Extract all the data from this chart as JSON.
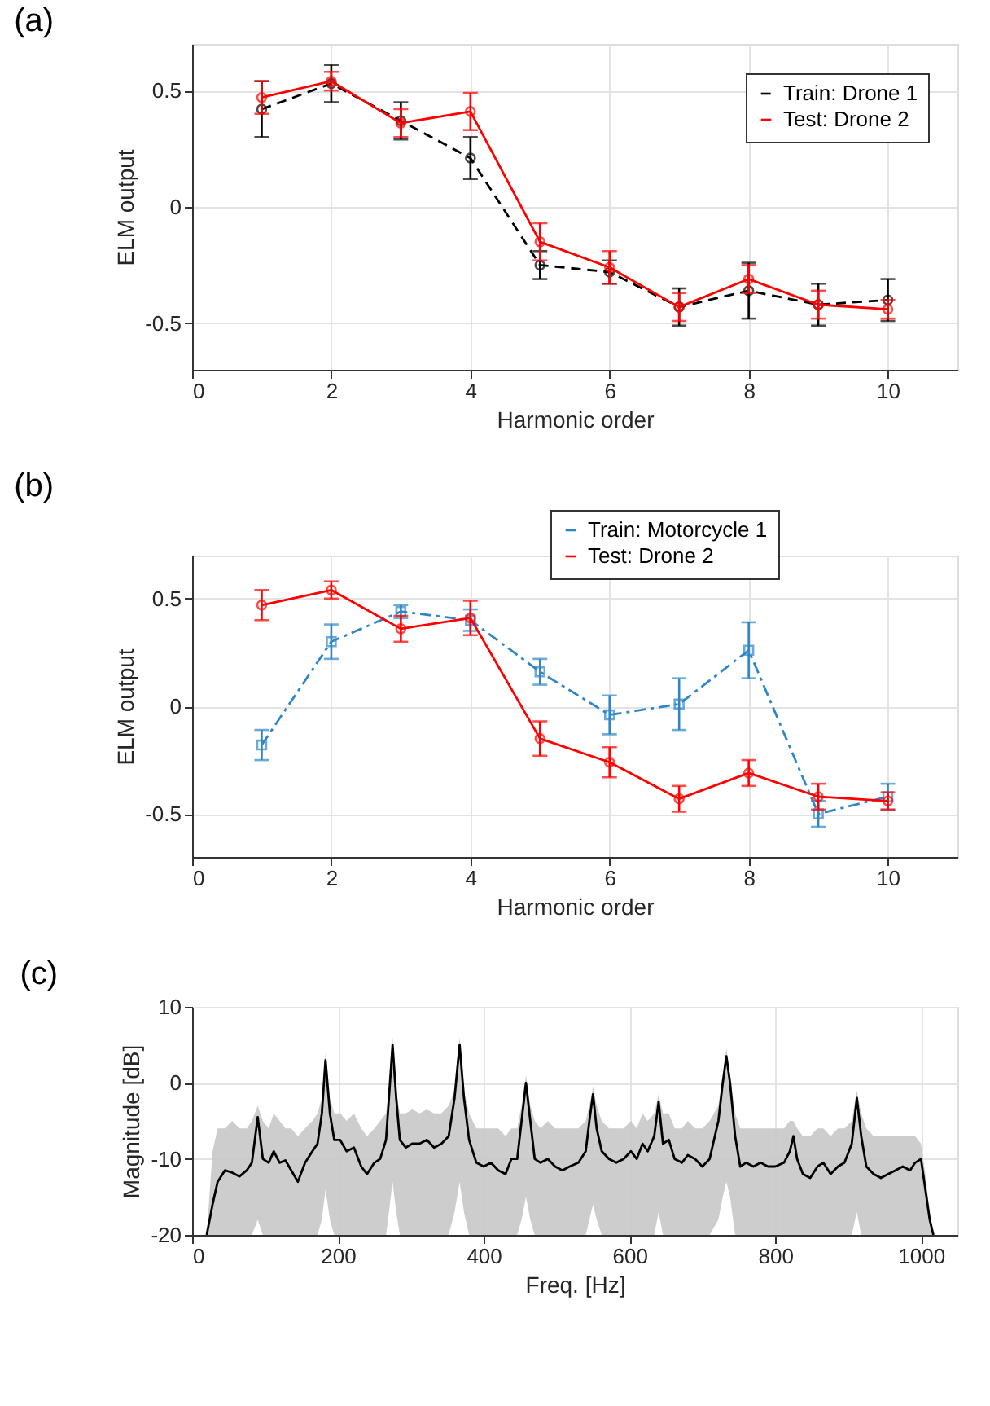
{
  "chart_data": [
    {
      "type": "line",
      "title": "(a)",
      "xlabel": "Harmonic order",
      "ylabel": "ELM output",
      "x": [
        1,
        2,
        3,
        4,
        5,
        6,
        7,
        8,
        9,
        10
      ],
      "xlim": [
        0,
        11
      ],
      "ylim": [
        -0.7,
        0.7
      ],
      "xticks": [
        0,
        2,
        4,
        6,
        8,
        10
      ],
      "yticks": [
        -0.5,
        0,
        0.5
      ],
      "grid": true,
      "legend": "top right",
      "series": [
        {
          "name": "Train: Drone 1",
          "color": "#000000",
          "line_style": "dashed",
          "marker": "circle",
          "values": [
            0.42,
            0.53,
            0.37,
            0.21,
            -0.25,
            -0.28,
            -0.43,
            -0.36,
            -0.42,
            -0.4
          ],
          "errors": [
            0.12,
            0.08,
            0.08,
            0.09,
            0.06,
            0.05,
            0.08,
            0.12,
            0.09,
            0.09
          ]
        },
        {
          "name": "Test: Drone 2",
          "color": "#ff0000",
          "line_style": "solid",
          "marker": "circle",
          "values": [
            0.47,
            0.54,
            0.36,
            0.41,
            -0.15,
            -0.26,
            -0.43,
            -0.31,
            -0.42,
            -0.44
          ],
          "errors": [
            0.07,
            0.04,
            0.06,
            0.08,
            0.08,
            0.07,
            0.06,
            0.06,
            0.06,
            0.04
          ]
        }
      ]
    },
    {
      "type": "line",
      "title": "(b)",
      "xlabel": "Harmonic order",
      "ylabel": "ELM output",
      "x": [
        1,
        2,
        3,
        4,
        5,
        6,
        7,
        8,
        9,
        10
      ],
      "xlim": [
        0,
        11
      ],
      "ylim": [
        -0.7,
        0.7
      ],
      "xticks": [
        0,
        2,
        4,
        6,
        8,
        10
      ],
      "yticks": [
        -0.5,
        0,
        0.5
      ],
      "grid": true,
      "legend": "top right",
      "series": [
        {
          "name": "Train: Motorcycle 1",
          "color": "#2e86c8",
          "line_style": "dashdot",
          "marker": "square",
          "values": [
            -0.18,
            0.3,
            0.44,
            0.4,
            0.16,
            -0.04,
            0.01,
            0.26,
            -0.5,
            -0.42
          ],
          "errors": [
            0.07,
            0.08,
            0.03,
            0.05,
            0.06,
            0.09,
            0.12,
            0.13,
            0.06,
            0.06
          ]
        },
        {
          "name": "Test: Drone 2",
          "color": "#ff0000",
          "line_style": "solid",
          "marker": "circle",
          "values": [
            0.47,
            0.54,
            0.36,
            0.41,
            -0.15,
            -0.26,
            -0.43,
            -0.31,
            -0.42,
            -0.44
          ],
          "errors": [
            0.07,
            0.04,
            0.06,
            0.08,
            0.08,
            0.07,
            0.06,
            0.06,
            0.06,
            0.04
          ]
        }
      ]
    },
    {
      "type": "line",
      "title": "(c)",
      "xlabel": "Freq. [Hz]",
      "ylabel": "Magnitude [dB]",
      "xlim": [
        0,
        1050
      ],
      "ylim": [
        -20,
        10
      ],
      "xticks": [
        0,
        200,
        400,
        600,
        800,
        1000
      ],
      "yticks": [
        -20,
        -10,
        0,
        10
      ],
      "grid": true,
      "series": [
        {
          "color": "#000000",
          "line_style": "solid",
          "marker": "none",
          "x": [
            20,
            28,
            35,
            45,
            55,
            65,
            75,
            82,
            90,
            97,
            105,
            112,
            120,
            128,
            136,
            145,
            155,
            165,
            172,
            178,
            183,
            189,
            195,
            203,
            212,
            222,
            232,
            240,
            250,
            258,
            266,
            270,
            275,
            280,
            285,
            293,
            302,
            312,
            322,
            332,
            342,
            352,
            360,
            367,
            373,
            380,
            390,
            400,
            410,
            420,
            430,
            438,
            446,
            452,
            458,
            464,
            470,
            478,
            488,
            498,
            508,
            518,
            530,
            540,
            545,
            550,
            555,
            562,
            572,
            582,
            592,
            602,
            610,
            618,
            625,
            634,
            640,
            646,
            654,
            662,
            672,
            680,
            690,
            700,
            710,
            722,
            728,
            733,
            738,
            745,
            752,
            760,
            770,
            780,
            790,
            800,
            812,
            820,
            825,
            830,
            838,
            848,
            858,
            866,
            876,
            886,
            895,
            905,
            912,
            918,
            925,
            935,
            945,
            955,
            965,
            975,
            985,
            992,
            1000,
            1006,
            1012,
            1017
          ],
          "values": [
            -20,
            -16,
            -13,
            -11.5,
            -11.8,
            -12.3,
            -11.5,
            -10.5,
            -4.5,
            -10,
            -10.5,
            -9,
            -10.5,
            -10.2,
            -11.5,
            -13,
            -10.5,
            -9,
            -8,
            -4,
            3,
            -4,
            -7.5,
            -7.5,
            -9,
            -8.5,
            -11,
            -12,
            -10.5,
            -10,
            -7.5,
            -2,
            5,
            -2,
            -7.5,
            -8.5,
            -8,
            -8,
            -7.5,
            -8.5,
            -8,
            -7,
            -2,
            5,
            -2,
            -7.5,
            -10.5,
            -11,
            -10.5,
            -11.5,
            -12,
            -10,
            -10,
            -5,
            0,
            -5,
            -10,
            -10.5,
            -10,
            -11,
            -11.5,
            -11,
            -10.5,
            -9,
            -5,
            -1.5,
            -6,
            -9,
            -10,
            -10.5,
            -10,
            -9,
            -10,
            -8,
            -9,
            -7,
            -2.5,
            -8,
            -7.5,
            -10,
            -10.5,
            -9.5,
            -10,
            -11,
            -10,
            -5,
            0,
            3.5,
            0,
            -7,
            -11,
            -10.5,
            -11,
            -10.5,
            -11,
            -11,
            -10.5,
            -9,
            -7,
            -10,
            -12,
            -12.5,
            -11,
            -10.5,
            -12,
            -11,
            -10.5,
            -8,
            -2,
            -7,
            -11,
            -12,
            -12.5,
            -12,
            -11.5,
            -11,
            -11.5,
            -10.5,
            -10,
            -14,
            -18,
            -20
          ],
          "upper": [
            -20,
            -9,
            -6,
            -6,
            -5,
            -6,
            -6,
            -5,
            -3,
            -5,
            -6,
            -4,
            -5,
            -6,
            -6,
            -7,
            -6,
            -5,
            -4,
            -2,
            4,
            -2,
            -4,
            -4,
            -5,
            -4,
            -6,
            -7,
            -6,
            -5,
            -4,
            -1,
            6,
            -1,
            -4,
            -4,
            -3.5,
            -4,
            -3.5,
            -4,
            -4,
            -3,
            -1,
            6,
            -1,
            -4,
            -6,
            -6,
            -6,
            -6,
            -7,
            -6,
            -6,
            -3,
            1,
            -3,
            -5,
            -6,
            -5,
            -6,
            -6,
            -6,
            -6,
            -5,
            -3,
            -0.5,
            -3,
            -5,
            -6,
            -6,
            -6,
            -5,
            -6,
            -4,
            -5,
            -4,
            -1.5,
            -4,
            -4,
            -6,
            -6,
            -5,
            -6,
            -6,
            -5,
            -3,
            1,
            4.5,
            1,
            -4,
            -6,
            -6,
            -6,
            -6,
            -6,
            -6,
            -6,
            -5,
            -5,
            -6,
            -7,
            -7,
            -6,
            -6,
            -7,
            -6,
            -6,
            -5,
            -1,
            -4,
            -6,
            -7,
            -7,
            -7,
            -7,
            -7,
            -7,
            -7,
            -8,
            -12,
            -17,
            -20
          ],
          "lower": [
            -20,
            -20,
            -20,
            -20,
            -20,
            -20,
            -20,
            -20,
            -18,
            -20,
            -20,
            -20,
            -20,
            -20,
            -20,
            -20,
            -20,
            -20,
            -20,
            -18,
            -14,
            -18,
            -20,
            -20,
            -20,
            -20,
            -20,
            -20,
            -20,
            -20,
            -20,
            -17,
            -13,
            -17,
            -20,
            -20,
            -20,
            -20,
            -20,
            -20,
            -20,
            -20,
            -17,
            -13,
            -17,
            -20,
            -20,
            -20,
            -20,
            -20,
            -20,
            -20,
            -20,
            -18,
            -15,
            -18,
            -20,
            -20,
            -20,
            -20,
            -20,
            -20,
            -20,
            -20,
            -18,
            -16,
            -18,
            -20,
            -20,
            -20,
            -20,
            -20,
            -20,
            -20,
            -20,
            -20,
            -17,
            -20,
            -20,
            -20,
            -20,
            -20,
            -20,
            -20,
            -20,
            -18,
            -15,
            -13,
            -15,
            -20,
            -20,
            -20,
            -20,
            -20,
            -20,
            -20,
            -20,
            -20,
            -20,
            -20,
            -20,
            -20,
            -20,
            -20,
            -20,
            -20,
            -20,
            -20,
            -17,
            -20,
            -20,
            -20,
            -20,
            -20,
            -20,
            -20,
            -20,
            -20,
            -20,
            -20,
            -20,
            -20
          ]
        }
      ]
    }
  ]
}
